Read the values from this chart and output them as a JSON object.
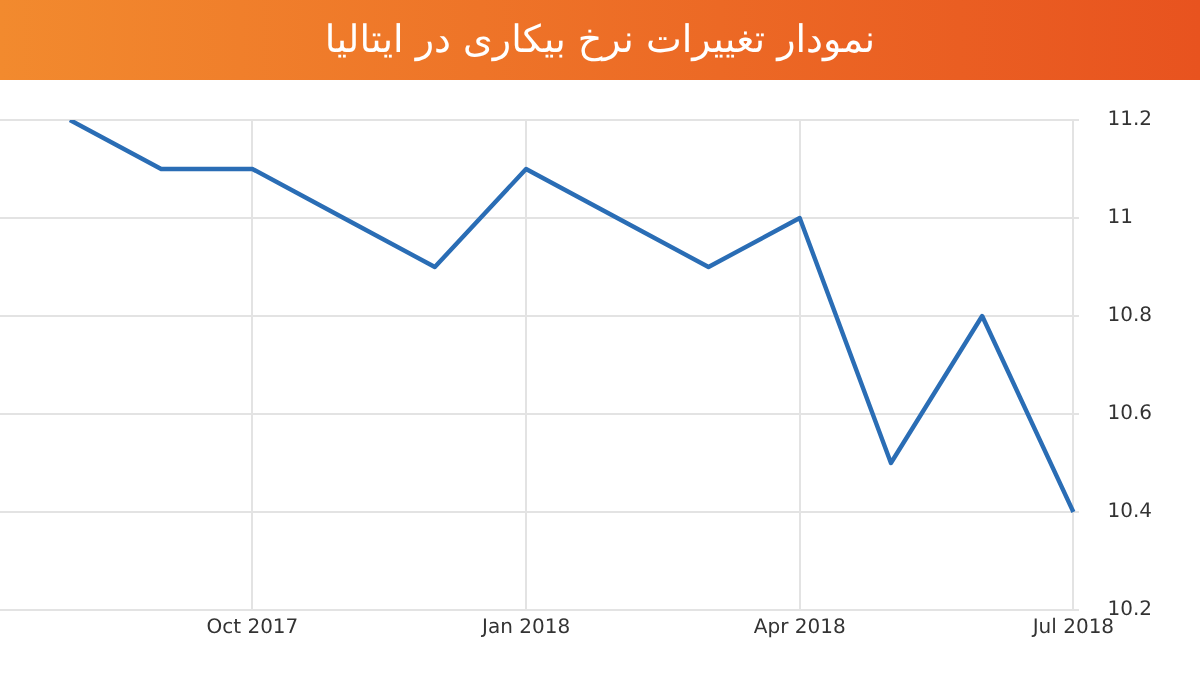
{
  "chart_data": {
    "type": "line",
    "title": "نمودار تغییرات نرخ بیکاری در ایتالیا",
    "x": [
      "2017-08",
      "2017-09",
      "2017-10",
      "2017-11",
      "2017-12",
      "2018-01",
      "2018-02",
      "2018-03",
      "2018-04",
      "2018-05",
      "2018-06",
      "2018-07"
    ],
    "series": [
      {
        "color": "#2a6db5",
        "values": [
          11.2,
          11.1,
          11.1,
          11.0,
          10.9,
          11.1,
          11.0,
          10.9,
          11.0,
          10.5,
          10.8,
          10.4
        ]
      }
    ],
    "xlim": [
      "2017-07-08",
      "2018-07-03"
    ],
    "xticks": [
      {
        "value": "2017-10",
        "label": "Oct 2017"
      },
      {
        "value": "2018-01",
        "label": "Jan 2018"
      },
      {
        "value": "2018-04",
        "label": "Apr 2018"
      },
      {
        "value": "2018-07",
        "label": "Jul 2018"
      }
    ],
    "ylim": [
      10.2,
      11.2
    ],
    "yticks": [
      10.2,
      10.4,
      10.6,
      10.8,
      11,
      11.2
    ],
    "grid": true,
    "legend": false,
    "marker": "none",
    "line_style": "solid"
  }
}
